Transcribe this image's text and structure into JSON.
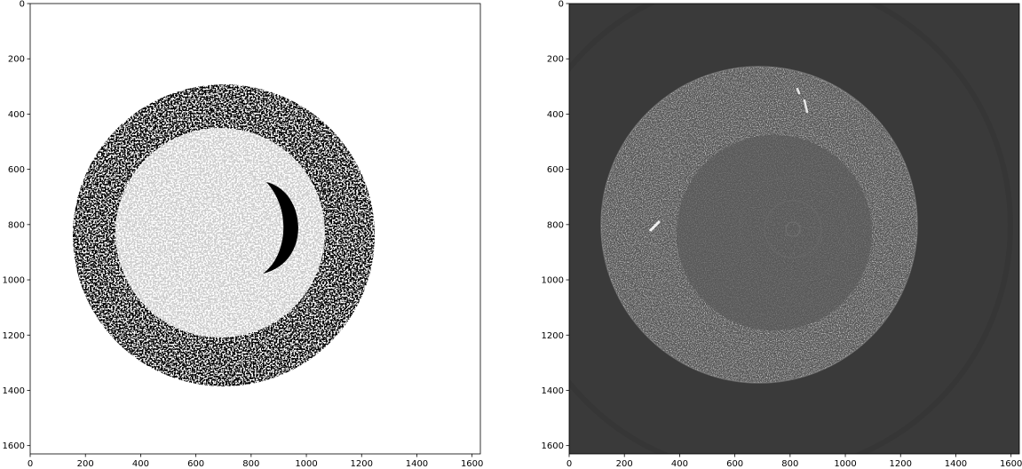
{
  "panels": [
    {
      "id": "binary",
      "style": "binary-mask",
      "background": "#ffffff",
      "foreground": "#000000",
      "xlim": [
        0,
        1630
      ],
      "ylim": [
        1630,
        0
      ],
      "xticks": [
        0,
        200,
        400,
        600,
        800,
        1000,
        1200,
        1400,
        1600
      ],
      "yticks": [
        0,
        200,
        400,
        600,
        800,
        1000,
        1200,
        1400,
        1600
      ],
      "disk": {
        "cx": 700,
        "cy": 840,
        "r": 545
      }
    },
    {
      "id": "grayscale",
      "style": "ct-slice",
      "background": "#3a3a3a",
      "foreground": "#595959",
      "xlim": [
        0,
        1630
      ],
      "ylim": [
        1630,
        0
      ],
      "xticks": [
        0,
        200,
        400,
        600,
        800,
        1000,
        1200,
        1400,
        1600
      ],
      "yticks": [
        0,
        200,
        400,
        600,
        800,
        1000,
        1200,
        1400,
        1600
      ],
      "disk": {
        "cx": 690,
        "cy": 800,
        "r": 570
      }
    }
  ]
}
